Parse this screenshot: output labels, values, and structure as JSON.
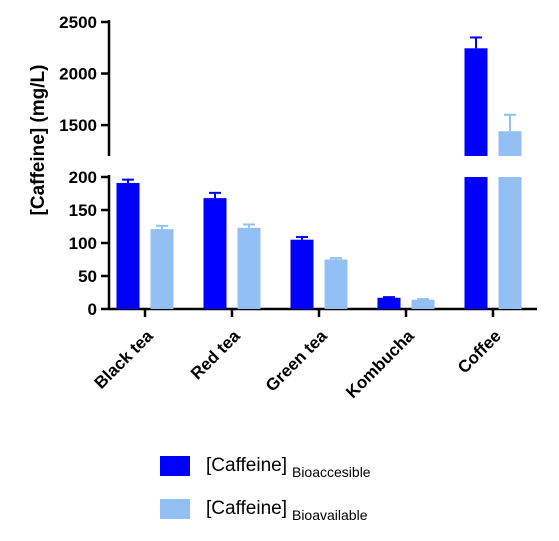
{
  "chart_data": {
    "type": "bar",
    "categories": [
      "Black tea",
      "Red tea",
      "Green tea",
      "Kombucha",
      "Coffee"
    ],
    "ylabel": "[Caffeine] (mg/L)",
    "xlabel": "",
    "title": "",
    "axis_break": true,
    "ylim_lower": [
      0,
      200
    ],
    "ylim_upper": [
      1200,
      2500
    ],
    "yticks_lower": [
      "0",
      "50",
      "100",
      "150",
      "200"
    ],
    "yticks_upper": [
      "1500",
      "2000",
      "2500"
    ],
    "legend_position": "bottom",
    "series": [
      {
        "name": "[Caffeine]",
        "subscript": "Bioaccesible",
        "color": "#0000FF",
        "values": [
          191,
          168,
          105,
          17,
          2245
        ],
        "errors": [
          5,
          8,
          4,
          1,
          105
        ]
      },
      {
        "name": "[Caffeine]",
        "subscript": "Bioavailable",
        "color": "#92C0F4",
        "values": [
          121,
          123,
          75,
          14,
          1440
        ],
        "errors": [
          5,
          5,
          2,
          1,
          160
        ]
      }
    ]
  }
}
